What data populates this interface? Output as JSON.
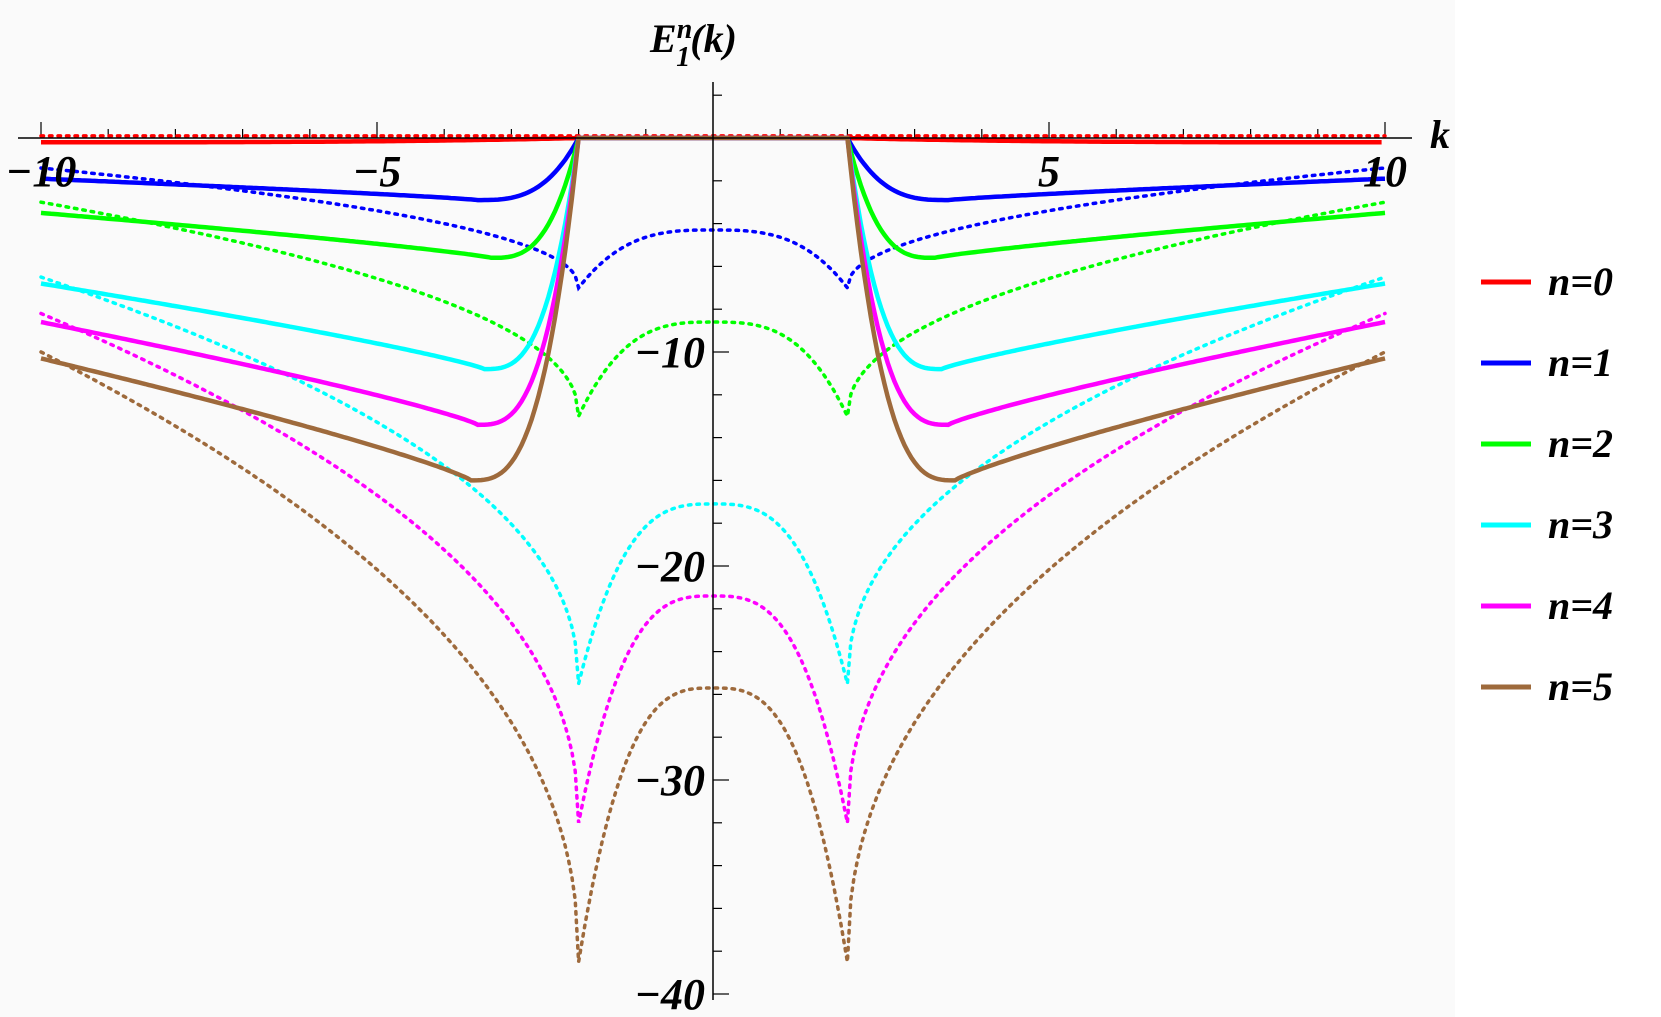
{
  "chart_data": {
    "type": "line",
    "ylabel": "E",
    "ylabel_super": "n",
    "ylabel_sub": "1",
    "ylabel_suffix": "(k)",
    "xlabel": "k",
    "xlim": [
      -10,
      10
    ],
    "ylim": [
      -40,
      2
    ],
    "x_ticks": [
      {
        "value": -10,
        "label": "−10"
      },
      {
        "value": -5,
        "label": "−5"
      },
      {
        "value": 5,
        "label": "5"
      },
      {
        "value": 10,
        "label": "10"
      }
    ],
    "y_ticks": [
      {
        "value": -10,
        "label": "−10"
      },
      {
        "value": -20,
        "label": "−20"
      },
      {
        "value": -30,
        "label": "−30"
      },
      {
        "value": -40,
        "label": "−40"
      }
    ],
    "legend_position": "right",
    "series": [
      {
        "name": "n=0",
        "color": "#ff0000",
        "solid": {
          "edge": -0.2,
          "min": -0.2,
          "kmin": 10
        },
        "dotted": {
          "edge": 0.1,
          "min": 0.1,
          "kmin": 10,
          "center": 0.1
        }
      },
      {
        "name": "n=1",
        "color": "#0000ff",
        "solid": {
          "edge": -1.9,
          "min": -2.9,
          "kmin": 3.5
        },
        "dotted": {
          "edge": -1.4,
          "min": -7,
          "kmin": 2,
          "center": -4.3
        }
      },
      {
        "name": "n=2",
        "color": "#00ff00",
        "solid": {
          "edge": -3.5,
          "min": -5.6,
          "kmin": 3.3
        },
        "dotted": {
          "edge": -3.0,
          "min": -13,
          "kmin": 2,
          "center": -8.6
        }
      },
      {
        "name": "n=3",
        "color": "#00ffff",
        "solid": {
          "edge": -6.8,
          "min": -10.8,
          "kmin": 3.4
        },
        "dotted": {
          "edge": -6.5,
          "min": -25.5,
          "kmin": 2,
          "center": -17.1
        }
      },
      {
        "name": "n=4",
        "color": "#ff00ff",
        "solid": {
          "edge": -8.6,
          "min": -13.4,
          "kmin": 3.5
        },
        "dotted": {
          "edge": -8.2,
          "min": -32,
          "kmin": 2,
          "center": -21.4
        }
      },
      {
        "name": "n=5",
        "color": "#9e6a3c",
        "solid": {
          "edge": -10.3,
          "min": -16.0,
          "kmin": 3.6
        },
        "dotted": {
          "edge": -10.0,
          "min": -38.5,
          "kmin": 2,
          "center": -25.7
        }
      }
    ]
  }
}
